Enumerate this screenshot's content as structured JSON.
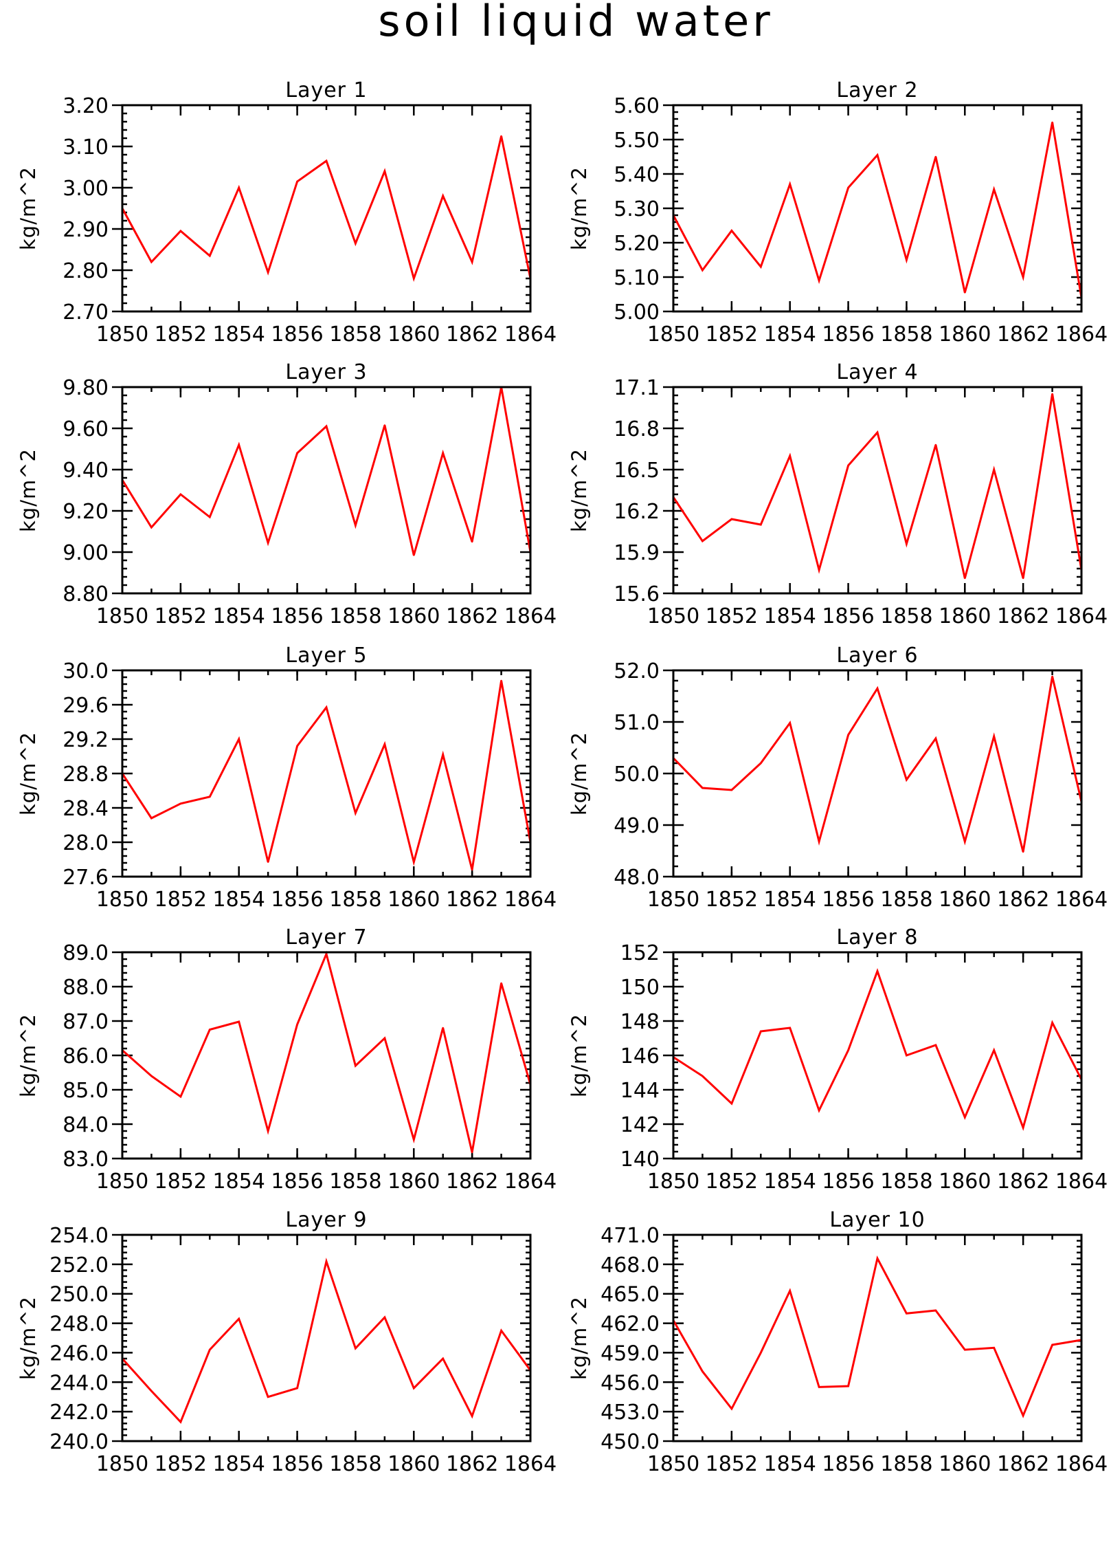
{
  "figure": {
    "title": "soil liquid water",
    "line_color": "#ff0000"
  },
  "chart_data": [
    {
      "type": "line",
      "title": "Layer 1",
      "ylabel": "kg/m^2",
      "x": [
        1850,
        1851,
        1852,
        1853,
        1854,
        1855,
        1856,
        1857,
        1858,
        1859,
        1860,
        1861,
        1862,
        1863,
        1864
      ],
      "xticks": [
        "1850",
        "1852",
        "1854",
        "1856",
        "1858",
        "1860",
        "1862",
        "1864"
      ],
      "xlim": [
        1850,
        1864
      ],
      "ylim": [
        2.7,
        3.2
      ],
      "yticks": [
        "2.70",
        "2.80",
        "2.90",
        "3.00",
        "3.10",
        "3.20"
      ],
      "series": [
        {
          "values": [
            2.95,
            2.82,
            2.895,
            2.835,
            3.0,
            2.795,
            3.015,
            3.065,
            2.865,
            3.04,
            2.78,
            2.98,
            2.82,
            3.125,
            2.78
          ]
        }
      ]
    },
    {
      "type": "line",
      "title": "Layer 2",
      "ylabel": "kg/m^2",
      "x": [
        1850,
        1851,
        1852,
        1853,
        1854,
        1855,
        1856,
        1857,
        1858,
        1859,
        1860,
        1861,
        1862,
        1863,
        1864
      ],
      "xticks": [
        "1850",
        "1852",
        "1854",
        "1856",
        "1858",
        "1860",
        "1862",
        "1864"
      ],
      "xlim": [
        1850,
        1864
      ],
      "ylim": [
        5.0,
        5.6
      ],
      "yticks": [
        "5.00",
        "5.10",
        "5.20",
        "5.30",
        "5.40",
        "5.50",
        "5.60"
      ],
      "series": [
        {
          "values": [
            5.28,
            5.12,
            5.235,
            5.13,
            5.37,
            5.09,
            5.36,
            5.455,
            5.15,
            5.45,
            5.055,
            5.355,
            5.1,
            5.55,
            5.04
          ]
        }
      ]
    },
    {
      "type": "line",
      "title": "Layer 3",
      "ylabel": "kg/m^2",
      "x": [
        1850,
        1851,
        1852,
        1853,
        1854,
        1855,
        1856,
        1857,
        1858,
        1859,
        1860,
        1861,
        1862,
        1863,
        1864
      ],
      "xticks": [
        "1850",
        "1852",
        "1854",
        "1856",
        "1858",
        "1860",
        "1862",
        "1864"
      ],
      "xlim": [
        1850,
        1864
      ],
      "ylim": [
        8.8,
        9.8
      ],
      "yticks": [
        "8.80",
        "9.00",
        "9.20",
        "9.40",
        "9.60",
        "9.80"
      ],
      "series": [
        {
          "values": [
            9.35,
            9.12,
            9.28,
            9.17,
            9.52,
            9.045,
            9.48,
            9.61,
            9.13,
            9.615,
            8.985,
            9.48,
            9.05,
            9.8,
            9.0
          ]
        }
      ]
    },
    {
      "type": "line",
      "title": "Layer 4",
      "ylabel": "kg/m^2",
      "x": [
        1850,
        1851,
        1852,
        1853,
        1854,
        1855,
        1856,
        1857,
        1858,
        1859,
        1860,
        1861,
        1862,
        1863,
        1864
      ],
      "xticks": [
        "1850",
        "1852",
        "1854",
        "1856",
        "1858",
        "1860",
        "1862",
        "1864"
      ],
      "xlim": [
        1850,
        1864
      ],
      "ylim": [
        15.6,
        17.1
      ],
      "yticks": [
        "15.6",
        "15.9",
        "16.2",
        "16.5",
        "16.8",
        "17.1"
      ],
      "series": [
        {
          "values": [
            16.3,
            15.98,
            16.14,
            16.1,
            16.6,
            15.77,
            16.53,
            16.77,
            15.96,
            16.68,
            15.71,
            16.5,
            15.71,
            17.05,
            15.77
          ]
        }
      ]
    },
    {
      "type": "line",
      "title": "Layer 5",
      "ylabel": "kg/m^2",
      "x": [
        1850,
        1851,
        1852,
        1853,
        1854,
        1855,
        1856,
        1857,
        1858,
        1859,
        1860,
        1861,
        1862,
        1863,
        1864
      ],
      "xticks": [
        "1850",
        "1852",
        "1854",
        "1856",
        "1858",
        "1860",
        "1862",
        "1864"
      ],
      "xlim": [
        1850,
        1864
      ],
      "ylim": [
        27.6,
        30.0
      ],
      "yticks": [
        "27.6",
        "28.0",
        "28.4",
        "28.8",
        "29.2",
        "29.6",
        "30.0"
      ],
      "series": [
        {
          "values": [
            28.8,
            28.28,
            28.45,
            28.53,
            29.2,
            27.77,
            29.12,
            29.57,
            28.34,
            29.14,
            27.77,
            29.02,
            27.68,
            29.88,
            28.0
          ]
        }
      ]
    },
    {
      "type": "line",
      "title": "Layer 6",
      "ylabel": "kg/m^2",
      "x": [
        1850,
        1851,
        1852,
        1853,
        1854,
        1855,
        1856,
        1857,
        1858,
        1859,
        1860,
        1861,
        1862,
        1863,
        1864
      ],
      "xticks": [
        "1850",
        "1852",
        "1854",
        "1856",
        "1858",
        "1860",
        "1862",
        "1864"
      ],
      "xlim": [
        1850,
        1864
      ],
      "ylim": [
        48.0,
        52.0
      ],
      "yticks": [
        "48.0",
        "49.0",
        "50.0",
        "51.0",
        "52.0"
      ],
      "series": [
        {
          "values": [
            50.3,
            49.72,
            49.68,
            50.2,
            50.98,
            48.68,
            50.75,
            51.65,
            49.88,
            50.68,
            48.68,
            50.72,
            48.48,
            51.88,
            49.45
          ]
        }
      ]
    },
    {
      "type": "line",
      "title": "Layer 7",
      "ylabel": "kg/m^2",
      "x": [
        1850,
        1851,
        1852,
        1853,
        1854,
        1855,
        1856,
        1857,
        1858,
        1859,
        1860,
        1861,
        1862,
        1863,
        1864
      ],
      "xticks": [
        "1850",
        "1852",
        "1854",
        "1856",
        "1858",
        "1860",
        "1862",
        "1864"
      ],
      "xlim": [
        1850,
        1864
      ],
      "ylim": [
        83.0,
        89.0
      ],
      "yticks": [
        "83.0",
        "84.0",
        "85.0",
        "86.0",
        "87.0",
        "88.0",
        "89.0"
      ],
      "series": [
        {
          "values": [
            86.15,
            85.4,
            84.8,
            86.75,
            86.98,
            83.8,
            86.9,
            88.95,
            85.7,
            86.5,
            83.55,
            86.8,
            83.18,
            88.1,
            85.15
          ]
        }
      ]
    },
    {
      "type": "line",
      "title": "Layer 8",
      "ylabel": "kg/m^2",
      "x": [
        1850,
        1851,
        1852,
        1853,
        1854,
        1855,
        1856,
        1857,
        1858,
        1859,
        1860,
        1861,
        1862,
        1863,
        1864
      ],
      "xticks": [
        "1850",
        "1852",
        "1854",
        "1856",
        "1858",
        "1860",
        "1862",
        "1864"
      ],
      "xlim": [
        1850,
        1864
      ],
      "ylim": [
        140,
        152
      ],
      "yticks": [
        "140",
        "142",
        "144",
        "146",
        "148",
        "150",
        "152"
      ],
      "series": [
        {
          "values": [
            145.9,
            144.8,
            143.2,
            147.4,
            147.6,
            142.8,
            146.3,
            150.9,
            146.0,
            146.6,
            142.4,
            146.3,
            141.8,
            147.9,
            144.6
          ]
        }
      ]
    },
    {
      "type": "line",
      "title": "Layer 9",
      "ylabel": "kg/m^2",
      "x": [
        1850,
        1851,
        1852,
        1853,
        1854,
        1855,
        1856,
        1857,
        1858,
        1859,
        1860,
        1861,
        1862,
        1863,
        1864
      ],
      "xticks": [
        "1850",
        "1852",
        "1854",
        "1856",
        "1858",
        "1860",
        "1862",
        "1864"
      ],
      "xlim": [
        1850,
        1864
      ],
      "ylim": [
        240.0,
        254.0
      ],
      "yticks": [
        "240.0",
        "242.0",
        "244.0",
        "246.0",
        "248.0",
        "250.0",
        "252.0",
        "254.0"
      ],
      "series": [
        {
          "values": [
            245.6,
            243.4,
            241.3,
            246.2,
            248.3,
            243.0,
            243.6,
            252.2,
            246.3,
            248.4,
            243.6,
            245.6,
            241.7,
            247.5,
            244.8
          ]
        }
      ]
    },
    {
      "type": "line",
      "title": "Layer 10",
      "ylabel": "kg/m^2",
      "x": [
        1850,
        1851,
        1852,
        1853,
        1854,
        1855,
        1856,
        1857,
        1858,
        1859,
        1860,
        1861,
        1862,
        1863,
        1864
      ],
      "xticks": [
        "1850",
        "1852",
        "1854",
        "1856",
        "1858",
        "1860",
        "1862",
        "1864"
      ],
      "xlim": [
        1850,
        1864
      ],
      "ylim": [
        450.0,
        471.0
      ],
      "yticks": [
        "450.0",
        "453.0",
        "456.0",
        "459.0",
        "462.0",
        "465.0",
        "468.0",
        "471.0"
      ],
      "series": [
        {
          "values": [
            462.3,
            457.1,
            453.3,
            459.0,
            465.3,
            455.5,
            455.6,
            468.6,
            463.0,
            463.3,
            459.3,
            459.5,
            452.6,
            459.8,
            460.3
          ]
        }
      ]
    }
  ]
}
